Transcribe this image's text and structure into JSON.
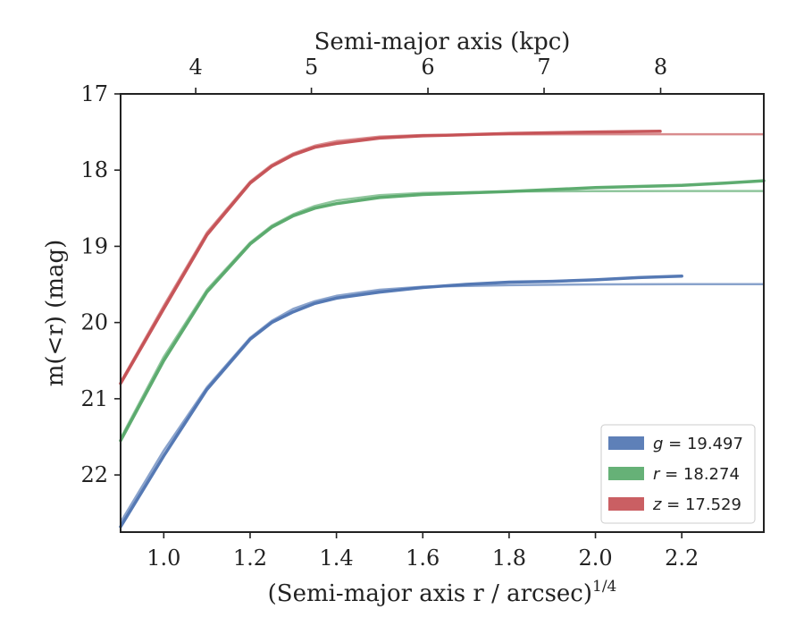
{
  "chart_data": {
    "type": "line",
    "xlabel": "(Semi-major axis r / arcsec)",
    "xlabel_exponent": "1/4",
    "ylabel": "m(<r) (mag)",
    "top_xlabel": "Semi-major axis (kpc)",
    "xlim": [
      0.9,
      2.39
    ],
    "ylim": [
      22.75,
      17.0
    ],
    "x_ticks": [
      1.0,
      1.2,
      1.4,
      1.6,
      1.8,
      2.0,
      2.2
    ],
    "x_tick_labels": [
      "1.0",
      "1.2",
      "1.4",
      "1.6",
      "1.8",
      "2.0",
      "2.2"
    ],
    "y_ticks": [
      17,
      18,
      19,
      20,
      21,
      22
    ],
    "y_tick_labels": [
      "17",
      "18",
      "19",
      "20",
      "21",
      "22"
    ],
    "top_ticks_x": [
      1.074,
      1.342,
      1.612,
      1.881,
      2.151
    ],
    "top_tick_labels": [
      "4",
      "5",
      "6",
      "7",
      "8"
    ],
    "legend_position": "lower-right",
    "grid": false,
    "series": [
      {
        "name": "g = 19.497",
        "legend_var": "g",
        "legend_value": "19.497",
        "color": "#4c72b0",
        "x": [
          0.9,
          1.0,
          1.1,
          1.2,
          1.25,
          1.3,
          1.35,
          1.4,
          1.5,
          1.6,
          1.7,
          1.8,
          1.9,
          2.0,
          2.1,
          2.2
        ],
        "values": [
          22.68,
          21.75,
          20.88,
          20.22,
          20.0,
          19.86,
          19.75,
          19.68,
          19.6,
          19.54,
          19.5,
          19.47,
          19.46,
          19.44,
          19.41,
          19.39
        ],
        "model_x": [
          0.9,
          1.0,
          1.1,
          1.2,
          1.25,
          1.3,
          1.35,
          1.4,
          1.5,
          1.6,
          1.8,
          2.0,
          2.2,
          2.39
        ],
        "model_values": [
          22.62,
          21.68,
          20.85,
          20.2,
          19.98,
          19.82,
          19.72,
          19.65,
          19.57,
          19.53,
          19.51,
          19.5,
          19.497,
          19.497
        ]
      },
      {
        "name": "r = 18.274",
        "legend_var": "r",
        "legend_value": "18.274",
        "color": "#55a868",
        "x": [
          0.9,
          1.0,
          1.1,
          1.2,
          1.25,
          1.3,
          1.35,
          1.4,
          1.5,
          1.6,
          1.8,
          2.0,
          2.2,
          2.3,
          2.39
        ],
        "values": [
          21.55,
          20.5,
          19.6,
          18.97,
          18.75,
          18.6,
          18.5,
          18.44,
          18.36,
          18.32,
          18.28,
          18.23,
          18.2,
          18.17,
          18.14
        ],
        "model_x": [
          0.9,
          1.0,
          1.1,
          1.2,
          1.25,
          1.3,
          1.35,
          1.4,
          1.5,
          1.6,
          1.8,
          2.0,
          2.2,
          2.39
        ],
        "model_values": [
          21.52,
          20.45,
          19.57,
          18.95,
          18.73,
          18.58,
          18.47,
          18.4,
          18.33,
          18.3,
          18.28,
          18.276,
          18.274,
          18.274
        ]
      },
      {
        "name": "z = 17.529",
        "legend_var": "z",
        "legend_value": "17.529",
        "color": "#c44e52",
        "x": [
          0.9,
          1.0,
          1.1,
          1.2,
          1.25,
          1.3,
          1.35,
          1.4,
          1.5,
          1.6,
          1.8,
          2.0,
          2.15
        ],
        "values": [
          20.8,
          19.82,
          18.85,
          18.17,
          17.95,
          17.8,
          17.7,
          17.65,
          17.58,
          17.55,
          17.52,
          17.5,
          17.49
        ],
        "model_x": [
          0.9,
          1.0,
          1.1,
          1.2,
          1.25,
          1.3,
          1.35,
          1.4,
          1.5,
          1.6,
          1.8,
          2.0,
          2.2,
          2.39
        ],
        "model_values": [
          20.78,
          19.78,
          18.82,
          18.15,
          17.93,
          17.78,
          17.68,
          17.62,
          17.56,
          17.54,
          17.53,
          17.529,
          17.529,
          17.529
        ]
      }
    ]
  }
}
